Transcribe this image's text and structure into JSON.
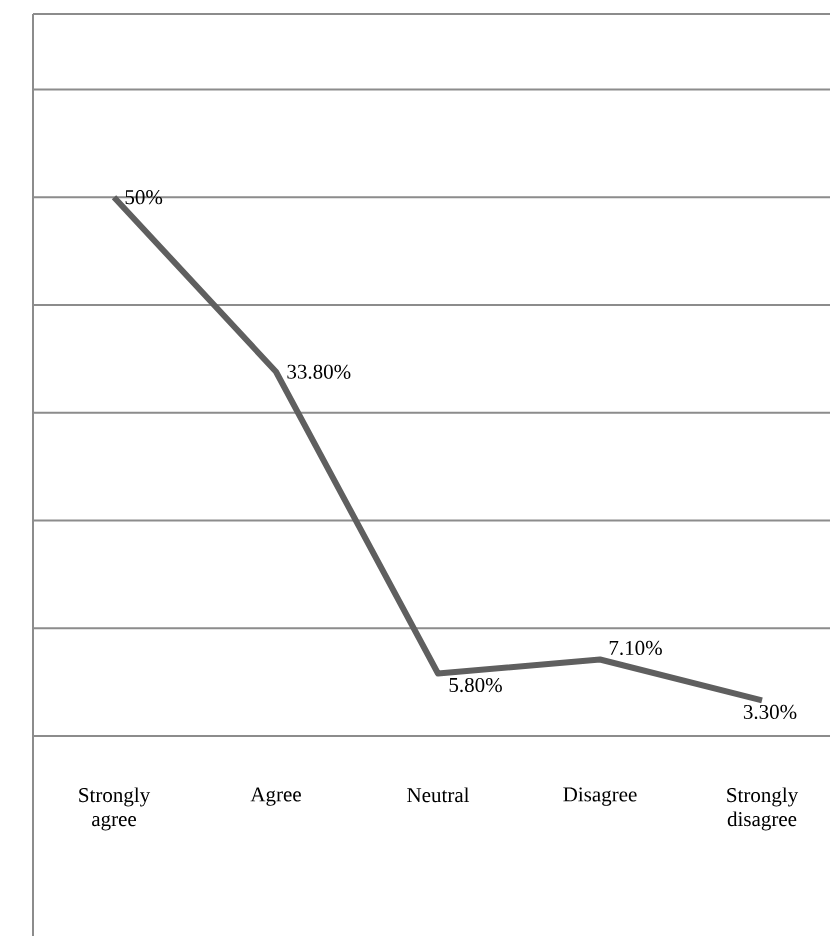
{
  "chart_data": {
    "type": "line",
    "categories": [
      "Strongly agree",
      "Agree",
      "Neutral",
      "Disagree",
      "Strongly disagree"
    ],
    "series": [
      {
        "color": "#5f5f5f",
        "values": [
          50,
          33.8,
          5.8,
          7.1,
          3.3
        ],
        "value_labels": [
          "50%",
          "33.80%",
          "5.80%",
          "7.10%",
          "3.30%"
        ]
      }
    ],
    "ylim": [
      0,
      67
    ],
    "yticks": [
      {
        "value": 0,
        "label": null
      },
      {
        "value": 10,
        "label": null
      },
      {
        "value": 20,
        "label": null
      },
      {
        "value": 30,
        "label": null
      },
      {
        "value": 40,
        "label": null
      },
      {
        "value": 50,
        "label": null
      },
      {
        "value": 60,
        "label": null
      }
    ],
    "grid": "y",
    "tick_labels": "x",
    "marker": "none",
    "line_style": "solid"
  }
}
